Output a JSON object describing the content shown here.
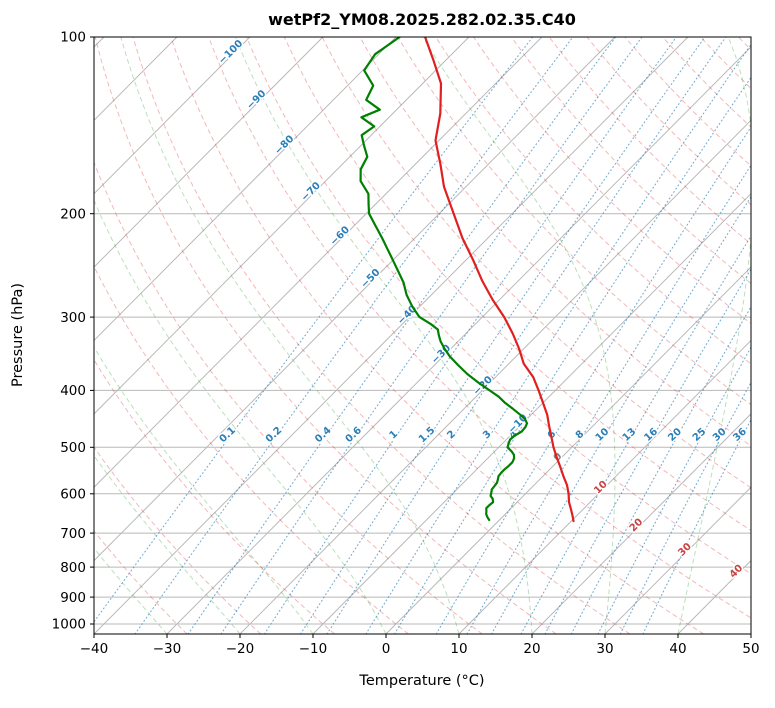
{
  "style": {
    "background": "#ffffff",
    "frame": "#000000",
    "grid": "#b9b9b9",
    "isotherm": "#b9b9b9",
    "dry_adiabat": "#d62728",
    "moist_adiabat": "#2ca02c",
    "mixing_ratio": "#1f77b4",
    "label_negative": "#2d7fb8",
    "label_positive": "#c84444",
    "label_zero": "#808080",
    "temperature": "#e02020",
    "dewpoint": "#008000"
  },
  "chart_data": {
    "type": "line",
    "chart_kind": "skew-t-log-p-sounding",
    "title": "wetPf2_YM08.2025.282.02.35.C40",
    "xlabel": "Temperature (°C)",
    "ylabel": "Pressure (hPa)",
    "x_ticks": [
      -40,
      -30,
      -20,
      -10,
      0,
      10,
      20,
      30,
      40,
      50
    ],
    "y_ticks": [
      100,
      200,
      300,
      400,
      500,
      600,
      700,
      800,
      900,
      1000
    ],
    "x_range": [
      -40,
      50
    ],
    "p_top": 100,
    "p_bottom": 1040,
    "skew_c_per_decade": 80,
    "grid": true,
    "series": [
      {
        "name": "temperature",
        "color_key": "temperature",
        "width": 2.2,
        "points_p_t": [
          [
            100,
            -76
          ],
          [
            110,
            -71.5
          ],
          [
            120,
            -67.5
          ],
          [
            135,
            -63.5
          ],
          [
            150,
            -60.5
          ],
          [
            165,
            -56.5
          ],
          [
            180,
            -53
          ],
          [
            200,
            -48
          ],
          [
            220,
            -43.5
          ],
          [
            240,
            -39
          ],
          [
            260,
            -35
          ],
          [
            280,
            -31
          ],
          [
            300,
            -27
          ],
          [
            320,
            -23.6
          ],
          [
            340,
            -20.6
          ],
          [
            360,
            -18
          ],
          [
            380,
            -14.8
          ],
          [
            400,
            -12.3
          ],
          [
            420,
            -10
          ],
          [
            440,
            -7.8
          ],
          [
            460,
            -6
          ],
          [
            480,
            -4.2
          ],
          [
            500,
            -2.5
          ],
          [
            520,
            -0.7
          ],
          [
            540,
            1.1
          ],
          [
            560,
            2.8
          ],
          [
            580,
            4.5
          ],
          [
            600,
            5.9
          ],
          [
            620,
            7.1
          ],
          [
            640,
            8.5
          ],
          [
            655,
            9.5
          ],
          [
            668,
            10.3
          ]
        ]
      },
      {
        "name": "dewpoint",
        "color_key": "dewpoint",
        "width": 2.2,
        "points_p_t": [
          [
            100,
            -79.5
          ],
          [
            107,
            -80.5
          ],
          [
            114,
            -79.8
          ],
          [
            121,
            -76.5
          ],
          [
            128,
            -75.5
          ],
          [
            133,
            -72.3
          ],
          [
            137,
            -73.8
          ],
          [
            142,
            -70.8
          ],
          [
            147,
            -71.3
          ],
          [
            153,
            -69.6
          ],
          [
            160,
            -67.6
          ],
          [
            168,
            -66.8
          ],
          [
            176,
            -65.2
          ],
          [
            185,
            -62.4
          ],
          [
            193,
            -60.9
          ],
          [
            200,
            -59.6
          ],
          [
            210,
            -57
          ],
          [
            220,
            -54.5
          ],
          [
            230,
            -52.2
          ],
          [
            240,
            -50
          ],
          [
            250,
            -47.9
          ],
          [
            262,
            -45.5
          ],
          [
            275,
            -43.4
          ],
          [
            288,
            -41
          ],
          [
            300,
            -38.6
          ],
          [
            308,
            -36.2
          ],
          [
            315,
            -34.4
          ],
          [
            322,
            -33.5
          ],
          [
            330,
            -32.4
          ],
          [
            340,
            -30.8
          ],
          [
            350,
            -29.1
          ],
          [
            362,
            -26.8
          ],
          [
            375,
            -24.3
          ],
          [
            388,
            -21.6
          ],
          [
            400,
            -19
          ],
          [
            410,
            -16.9
          ],
          [
            420,
            -15.2
          ],
          [
            430,
            -13.3
          ],
          [
            440,
            -11.5
          ],
          [
            448,
            -10.2
          ],
          [
            455,
            -9.4
          ],
          [
            462,
            -9.1
          ],
          [
            470,
            -9
          ],
          [
            478,
            -9.4
          ],
          [
            485,
            -9.5
          ],
          [
            492,
            -9.2
          ],
          [
            500,
            -8.8
          ],
          [
            508,
            -7.7
          ],
          [
            515,
            -6.9
          ],
          [
            522,
            -6.4
          ],
          [
            530,
            -6.1
          ],
          [
            538,
            -6.1
          ],
          [
            545,
            -6.2
          ],
          [
            552,
            -6.2
          ],
          [
            560,
            -6.1
          ],
          [
            568,
            -5.7
          ],
          [
            575,
            -5.4
          ],
          [
            582,
            -5.3
          ],
          [
            590,
            -5.2
          ],
          [
            598,
            -4.8
          ],
          [
            605,
            -4.5
          ],
          [
            612,
            -3.8
          ],
          [
            620,
            -3.3
          ],
          [
            628,
            -3.4
          ],
          [
            635,
            -3.4
          ],
          [
            642,
            -3
          ],
          [
            650,
            -2.6
          ],
          [
            658,
            -2
          ],
          [
            665,
            -1.4
          ]
        ]
      }
    ],
    "isotherms": {
      "start": -120,
      "end": 50,
      "step": 10,
      "labels": [
        {
          "t": -100,
          "p": 107
        },
        {
          "t": -90,
          "p": 129
        },
        {
          "t": -80,
          "p": 154
        },
        {
          "t": -70,
          "p": 185
        },
        {
          "t": -60,
          "p": 220
        },
        {
          "t": -50,
          "p": 260
        },
        {
          "t": -40,
          "p": 300
        },
        {
          "t": -30,
          "p": 350
        },
        {
          "t": -20,
          "p": 396
        },
        {
          "t": -10,
          "p": 460
        },
        {
          "t": 0,
          "p": 524
        },
        {
          "t": 10,
          "p": 590
        },
        {
          "t": 20,
          "p": 684
        },
        {
          "t": 30,
          "p": 753
        },
        {
          "t": 40,
          "p": 820
        }
      ]
    },
    "dry_adiabats": {
      "theta_start": -30,
      "theta_end": 200,
      "step": 10
    },
    "moist_adiabats": {
      "t_start": -40,
      "t_end": 40,
      "step": 10
    },
    "mixing_ratio": {
      "values": [
        0.1,
        0.2,
        0.4,
        0.6,
        1,
        1.5,
        2,
        3,
        4,
        6,
        8,
        10,
        13,
        16,
        20,
        25,
        30,
        36
      ],
      "label_pressure": 480
    }
  }
}
